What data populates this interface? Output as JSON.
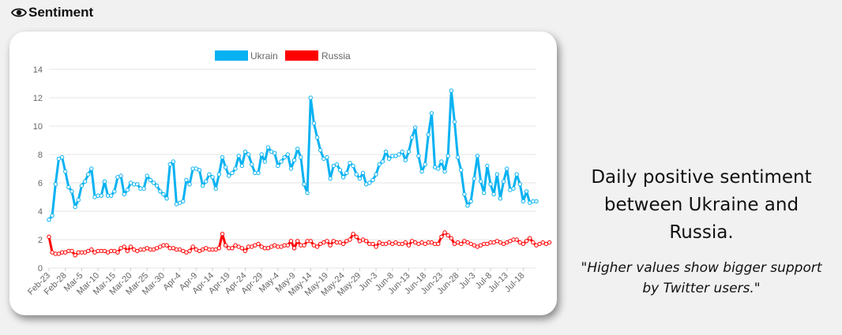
{
  "header": {
    "icon": "eye-icon",
    "title": "Sentiment"
  },
  "description": {
    "title": "Daily positive sentiment between Ukraine and Russia.",
    "note": "\"Higher shows bigger support by Twitter users.\""
  },
  "chart_data": {
    "type": "line",
    "legend_position": "top-center",
    "grid": true,
    "ylim": [
      0,
      14
    ],
    "yticks": [
      0,
      2,
      4,
      6,
      8,
      10,
      12,
      14
    ],
    "xtick_labels": [
      "Feb-23",
      "Feb-28",
      "Mar-5",
      "Mar-10",
      "Mar-15",
      "Mar-20",
      "Mar-25",
      "Mar-30",
      "Apr-4",
      "Apr-9",
      "Apr-14",
      "Apr-19",
      "Apr-24",
      "Apr-29",
      "May-4",
      "May-9",
      "May-14",
      "May-19",
      "May-24",
      "May-29",
      "Jun-3",
      "Jun-8",
      "Jun-13",
      "Jun-18",
      "Jun-23",
      "Jun-28",
      "Jul-3",
      "Jul-8",
      "Jul-13",
      "Jul-18"
    ],
    "series": [
      {
        "name": "Ukrain",
        "color": "#08b2f2",
        "values": [
          3.4,
          3.7,
          5.9,
          7.7,
          7.8,
          6.8,
          5.7,
          5.4,
          4.3,
          4.8,
          5.8,
          6.1,
          6.6,
          7.0,
          5.0,
          5.1,
          5.1,
          6.1,
          5.1,
          5.1,
          5.4,
          6.4,
          6.5,
          5.2,
          5.5,
          6.0,
          5.9,
          5.9,
          5.6,
          5.6,
          6.5,
          6.2,
          6.0,
          5.8,
          5.4,
          5.2,
          4.9,
          7.3,
          7.5,
          4.5,
          4.6,
          4.7,
          6.2,
          5.9,
          7.0,
          7.0,
          6.9,
          5.8,
          6.1,
          6.6,
          6.4,
          5.6,
          6.6,
          7.8,
          7.1,
          6.5,
          6.7,
          7.0,
          7.9,
          7.2,
          8.2,
          8.0,
          7.3,
          6.7,
          6.7,
          8.0,
          7.5,
          8.5,
          8.2,
          8.1,
          7.2,
          7.5,
          7.8,
          8.0,
          7.0,
          7.6,
          8.4,
          7.8,
          5.9,
          5.3,
          12.0,
          10.2,
          9.2,
          8.3,
          7.7,
          7.8,
          6.3,
          7.2,
          7.3,
          6.9,
          6.4,
          6.7,
          7.4,
          7.2,
          6.6,
          6.3,
          6.7,
          5.9,
          6.0,
          6.2,
          6.6,
          7.3,
          7.5,
          8.2,
          7.7,
          7.9,
          7.9,
          8.0,
          8.2,
          7.6,
          8.2,
          9.2,
          9.9,
          7.9,
          6.8,
          7.3,
          9.4,
          10.9,
          7.1,
          7.0,
          7.5,
          6.8,
          7.9,
          12.5,
          10.3,
          7.8,
          6.9,
          5.2,
          4.4,
          4.7,
          6.3,
          7.9,
          6.1,
          5.3,
          7.2,
          5.9,
          5.2,
          6.6,
          4.9,
          6.1,
          7.0,
          5.5,
          5.6,
          6.6,
          5.9,
          4.7,
          5.4,
          4.6,
          4.7,
          4.7
        ]
      },
      {
        "name": "Russia",
        "color": "#ff0000",
        "values": [
          2.2,
          1.1,
          1.0,
          1.0,
          1.1,
          1.1,
          1.2,
          1.2,
          0.9,
          1.1,
          1.1,
          1.1,
          1.2,
          1.3,
          1.1,
          1.2,
          1.2,
          1.2,
          1.1,
          1.2,
          1.2,
          1.1,
          1.4,
          1.5,
          1.2,
          1.5,
          1.3,
          1.2,
          1.3,
          1.3,
          1.4,
          1.3,
          1.3,
          1.4,
          1.5,
          1.6,
          1.6,
          1.4,
          1.4,
          1.3,
          1.3,
          1.2,
          1.1,
          1.2,
          1.5,
          1.3,
          1.2,
          1.3,
          1.4,
          1.3,
          1.3,
          1.3,
          1.4,
          2.4,
          1.6,
          1.4,
          1.4,
          1.6,
          1.5,
          1.4,
          1.2,
          1.5,
          1.5,
          1.6,
          1.7,
          1.5,
          1.4,
          1.4,
          1.5,
          1.6,
          1.5,
          1.5,
          1.6,
          1.6,
          1.9,
          1.4,
          1.9,
          1.6,
          1.6,
          1.9,
          1.9,
          1.6,
          1.5,
          1.7,
          1.8,
          1.9,
          1.6,
          1.9,
          1.8,
          1.8,
          1.7,
          1.9,
          2.0,
          2.4,
          2.2,
          1.9,
          2.0,
          1.9,
          1.7,
          1.7,
          1.5,
          1.8,
          1.7,
          1.7,
          1.8,
          1.7,
          1.8,
          1.7,
          1.7,
          1.8,
          1.6,
          1.9,
          1.8,
          1.7,
          1.8,
          1.7,
          1.8,
          1.8,
          1.7,
          1.7,
          2.2,
          2.5,
          2.3,
          2.1,
          1.7,
          1.8,
          1.7,
          1.9,
          1.8,
          1.7,
          1.6,
          1.5,
          1.6,
          1.7,
          1.7,
          1.8,
          1.8,
          1.9,
          1.8,
          1.7,
          1.8,
          1.9,
          2.0,
          2.0,
          1.8,
          1.7,
          1.9,
          2.1,
          1.8,
          1.6,
          1.7,
          1.8,
          1.7,
          1.8
        ]
      }
    ]
  }
}
